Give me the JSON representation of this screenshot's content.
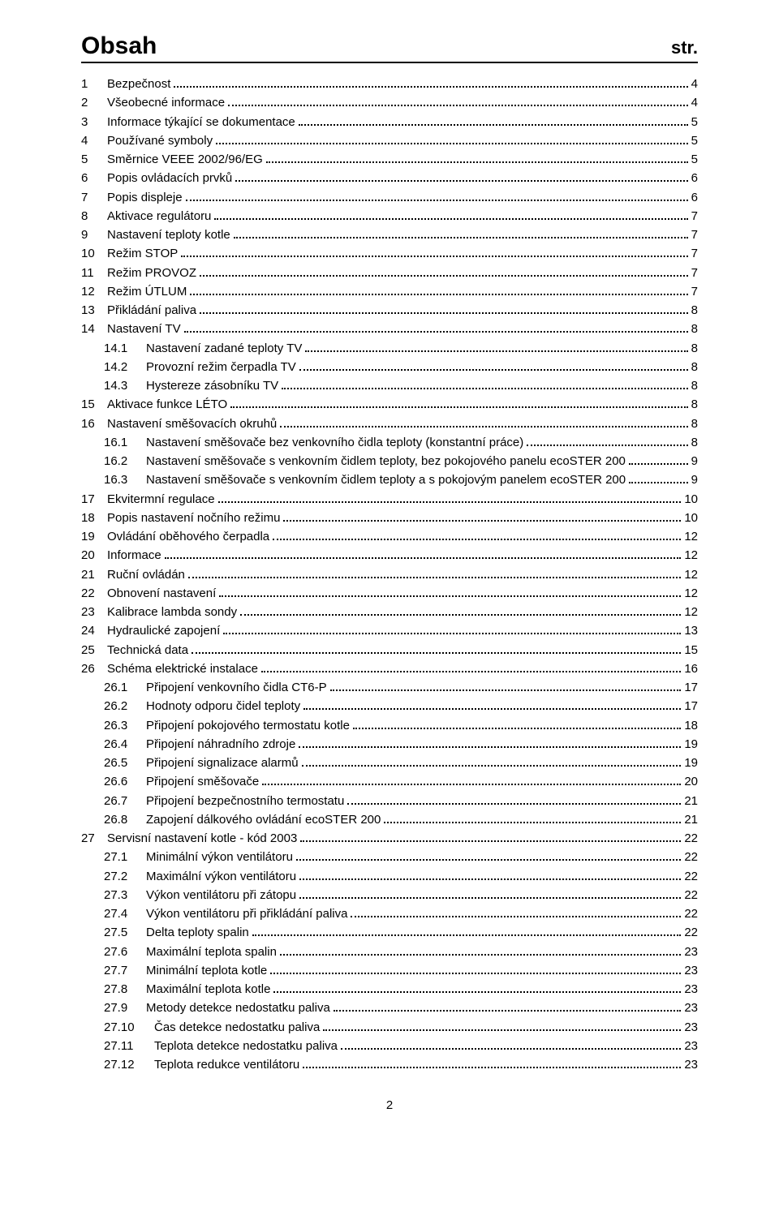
{
  "header": {
    "title": "Obsah",
    "label_str": "str."
  },
  "footer": {
    "page_num": "2"
  },
  "toc": [
    {
      "lvl": 1,
      "num": "1",
      "text": "Bezpečnost",
      "page": "4"
    },
    {
      "lvl": 1,
      "num": "2",
      "text": "Všeobecné informace",
      "page": "4"
    },
    {
      "lvl": 1,
      "num": "3",
      "text": "Informace týkající se dokumentace",
      "page": "5"
    },
    {
      "lvl": 1,
      "num": "4",
      "text": "Používané symboly",
      "page": "5"
    },
    {
      "lvl": 1,
      "num": "5",
      "text": "Směrnice VEEE 2002/96/EG",
      "page": "5"
    },
    {
      "lvl": 1,
      "num": "6",
      "text": "Popis ovládacích prvků",
      "page": "6"
    },
    {
      "lvl": 1,
      "num": "7",
      "text": "Popis displeje",
      "page": "6"
    },
    {
      "lvl": 1,
      "num": "8",
      "text": "Aktivace regulátoru",
      "page": "7"
    },
    {
      "lvl": 1,
      "num": "9",
      "text": "Nastavení teploty kotle",
      "page": "7"
    },
    {
      "lvl": 1,
      "num": "10",
      "text": "Režim STOP",
      "page": "7"
    },
    {
      "lvl": 1,
      "num": "11",
      "text": "Režim PROVOZ",
      "page": "7"
    },
    {
      "lvl": 1,
      "num": "12",
      "text": "Režim ÚTLUM",
      "page": "7"
    },
    {
      "lvl": 1,
      "num": "13",
      "text": "Přikládání paliva",
      "page": "8"
    },
    {
      "lvl": 1,
      "num": "14",
      "text": "Nastavení TV",
      "page": "8"
    },
    {
      "lvl": 2,
      "num": "14.1",
      "text": "Nastavení zadané teploty TV",
      "page": "8"
    },
    {
      "lvl": 2,
      "num": "14.2",
      "text": "Provozní režim čerpadla TV",
      "page": "8"
    },
    {
      "lvl": 2,
      "num": "14.3",
      "text": "Hystereze zásobníku TV",
      "page": "8"
    },
    {
      "lvl": 1,
      "num": "15",
      "text": "Aktivace funkce LÉTO",
      "page": "8"
    },
    {
      "lvl": 1,
      "num": "16",
      "text": "Nastavení směšovacích okruhů",
      "page": "8"
    },
    {
      "lvl": 2,
      "num": "16.1",
      "text": "Nastavení směšovače bez venkovního čidla teploty (konstantní práce)",
      "page": "8"
    },
    {
      "lvl": 2,
      "num": "16.2",
      "text": "Nastavení směšovače s venkovním čidlem teploty, bez pokojového panelu ecoSTER 200",
      "page": "9"
    },
    {
      "lvl": 2,
      "num": "16.3",
      "text": "Nastavení směšovače s venkovním čidlem teploty a s pokojovým panelem ecoSTER 200",
      "page": "9"
    },
    {
      "lvl": 1,
      "num": "17",
      "text": "Ekvitermní regulace",
      "page": "10"
    },
    {
      "lvl": 1,
      "num": "18",
      "text": "Popis nastavení nočního režimu",
      "page": "10"
    },
    {
      "lvl": 1,
      "num": "19",
      "text": "Ovládání oběhového čerpadla",
      "page": "12"
    },
    {
      "lvl": 1,
      "num": "20",
      "text": "Informace",
      "page": "12"
    },
    {
      "lvl": 1,
      "num": "21",
      "text": "Ruční ovládán",
      "page": "12"
    },
    {
      "lvl": 1,
      "num": "22",
      "text": "Obnovení nastavení",
      "page": "12"
    },
    {
      "lvl": 1,
      "num": "23",
      "text": "Kalibrace lambda sondy",
      "page": "12"
    },
    {
      "lvl": 1,
      "num": "24",
      "text": "Hydraulické zapojení",
      "page": "13"
    },
    {
      "lvl": 1,
      "num": "25",
      "text": "Technická data",
      "page": "15"
    },
    {
      "lvl": 1,
      "num": "26",
      "text": "Schéma elektrické instalace",
      "page": "16"
    },
    {
      "lvl": 2,
      "num": "26.1",
      "text": "Připojení venkovního čidla CT6-P",
      "page": "17"
    },
    {
      "lvl": 2,
      "num": "26.2",
      "text": "Hodnoty odporu čidel teploty",
      "page": "17"
    },
    {
      "lvl": 2,
      "num": "26.3",
      "text": "Připojení pokojového termostatu kotle",
      "page": "18"
    },
    {
      "lvl": 2,
      "num": "26.4",
      "text": "Připojení náhradního zdroje",
      "page": "19"
    },
    {
      "lvl": 2,
      "num": "26.5",
      "text": "Připojení signalizace alarmů",
      "page": "19"
    },
    {
      "lvl": 2,
      "num": "26.6",
      "text": "Připojení směšovače",
      "page": "20"
    },
    {
      "lvl": 2,
      "num": "26.7",
      "text": "Připojení bezpečnostního termostatu",
      "page": "21"
    },
    {
      "lvl": 2,
      "num": "26.8",
      "text": "Zapojení dálkového ovládání ecoSTER 200",
      "page": "21"
    },
    {
      "lvl": 1,
      "num": "27",
      "text": "Servisní nastavení kotle - kód 2003",
      "page": "22"
    },
    {
      "lvl": 2,
      "num": "27.1",
      "text": "Minimální výkon ventilátoru",
      "page": "22"
    },
    {
      "lvl": 2,
      "num": "27.2",
      "text": "Maximální výkon ventilátoru",
      "page": "22"
    },
    {
      "lvl": 2,
      "num": "27.3",
      "text": "Výkon ventilátoru při zátopu",
      "page": "22"
    },
    {
      "lvl": 2,
      "num": "27.4",
      "text": "Výkon ventilátoru při přikládání paliva",
      "page": "22"
    },
    {
      "lvl": 2,
      "num": "27.5",
      "text": "Delta teploty spalin",
      "page": "22"
    },
    {
      "lvl": 2,
      "num": "27.6",
      "text": "Maximální teplota spalin",
      "page": "23"
    },
    {
      "lvl": 2,
      "num": "27.7",
      "text": "Minimální teplota kotle",
      "page": "23"
    },
    {
      "lvl": 2,
      "num": "27.8",
      "text": "Maximální teplota kotle",
      "page": "23"
    },
    {
      "lvl": 2,
      "num": "27.9",
      "text": "Metody detekce nedostatku paliva",
      "page": "23"
    },
    {
      "lvl": 3,
      "num": "27.10",
      "text": "Čas detekce nedostatku paliva",
      "page": "23"
    },
    {
      "lvl": 3,
      "num": "27.11",
      "text": "Teplota detekce nedostatku paliva",
      "page": "23"
    },
    {
      "lvl": 3,
      "num": "27.12",
      "text": "Teplota redukce ventilátoru",
      "page": "23"
    }
  ]
}
